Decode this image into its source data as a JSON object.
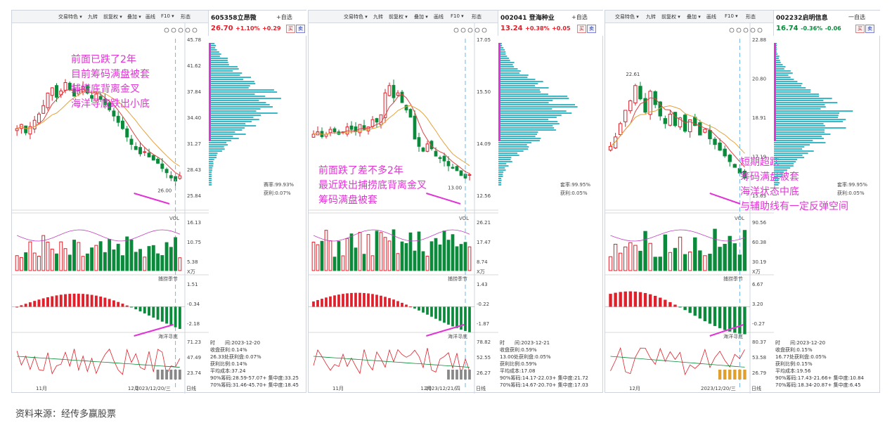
{
  "source": "资料来源：经传多赢股票",
  "toolbar": [
    "交易特色 ▾",
    "九转",
    "前复权 ▾",
    "叠加 ▾",
    "画线",
    "F10 ▾",
    "形态"
  ],
  "header_buttons": {
    "add": "+自选",
    "buy": "买",
    "sell": "卖",
    "minus": "一自选",
    "more": "»"
  },
  "footer_daily": "日线",
  "vol_label": "VOL",
  "x_unit": "X万",
  "ind1_label": "捕捞季节",
  "ind2_label": "海洋寻底",
  "chart_data": [
    {
      "type": "candlestick",
      "code": "605358",
      "name": "立昂微",
      "price": "26.70",
      "change_pct": "+1.10%",
      "change": "+0.29",
      "trend": "up",
      "y_ticks": [
        "45.78",
        "41.62",
        "37.84",
        "34.40",
        "31.27",
        "28.43",
        "25.84"
      ],
      "vol_ticks": [
        "16.13",
        "10.75",
        "5.38"
      ],
      "ind1_ticks": [
        "1.51",
        "-0.34",
        "-2.18"
      ],
      "ind2_ticks": [
        "71.23",
        "47.49",
        "23.74"
      ],
      "x_labels": [
        "11月",
        "12月"
      ],
      "date_label": "2023/12/20/三",
      "low_label": "26.00",
      "profit_rate": "赛率:99.93%",
      "profit_ratio": "获利:0.07%",
      "closes": [
        31.2,
        31.6,
        30.8,
        31.4,
        32.0,
        32.6,
        33.4,
        34.6,
        35.1,
        34.2,
        34.8,
        35.6,
        34.9,
        34.3,
        34.8,
        35.2,
        34.6,
        34.1,
        34.5,
        34.0,
        33.5,
        33.0,
        32.4,
        31.8,
        31.2,
        30.4,
        29.7,
        29.2,
        28.8,
        29.0,
        28.5,
        28.2,
        27.9,
        27.4,
        27.0,
        26.5,
        26.2,
        26.7
      ],
      "annotation": [
        "前面已跌了2年",
        "目前筹码满盘被套",
        "捕捞底背离金叉",
        "海洋寻底跌出小底"
      ],
      "info": [
        "时　　间:2023-12-20",
        "收盘获利:0.14%",
        "26.33处获利盘:0.07%",
        "获利比例:0.14%",
        "平均成本:37.24",
        "90%筹码:28.59-57.07+ 集中度:33.25",
        "70%筹码:31.46-45.70+ 集中度:18.45"
      ]
    },
    {
      "type": "candlestick",
      "code": "002041",
      "name": "登海种业",
      "price": "13.24",
      "change_pct": "+0.38%",
      "change": "+0.05",
      "trend": "up",
      "y_ticks": [
        "17.05",
        "15.50",
        "14.09",
        "12.56"
      ],
      "vol_ticks": [
        "26.21",
        "17.47",
        "8.74"
      ],
      "ind1_ticks": [
        "1.43",
        "-0.22",
        "-1.87"
      ],
      "ind2_ticks": [
        "78.82",
        "52.55",
        "26.27"
      ],
      "x_labels": [
        "11月",
        "12月"
      ],
      "date_label": "2023/12/21/四",
      "low_label": "13.00",
      "profit_rate": "套率:99.95%",
      "profit_ratio": "获利:0.05%",
      "closes": [
        14.9,
        15.0,
        14.8,
        14.9,
        15.1,
        15.0,
        14.9,
        15.0,
        15.2,
        15.1,
        15.0,
        15.3,
        15.1,
        15.2,
        15.5,
        15.4,
        15.7,
        16.6,
        16.9,
        16.4,
        16.6,
        16.2,
        15.9,
        15.6,
        14.7,
        14.4,
        14.2,
        14.5,
        14.3,
        14.0,
        13.9,
        13.8,
        13.6,
        13.5,
        13.4,
        13.2,
        13.1,
        13.24
      ],
      "annotation": [
        "前面跌了差不多2年",
        "最近跌出捕捞底背离金叉",
        "筹码满盘被套"
      ],
      "info": [
        "时　　间:2023-12-21",
        "收盘获利:0.59%",
        "13.00处获利盘:0.05%",
        "获利比例:0.59%",
        "平均成本:17.08",
        "90%筹码:14.17-22.03+ 集中度:21.72",
        "70%筹码:14.67-20.70+ 集中度:17.03"
      ]
    },
    {
      "type": "candlestick",
      "code": "002232",
      "name": "启明信息",
      "price": "16.74",
      "change_pct": "-0.36%",
      "change": "-0.06",
      "trend": "down",
      "y_ticks": [
        "22.88",
        "20.80",
        "18.91",
        "17.19",
        "15.63"
      ],
      "vol_ticks": [
        "90.56",
        "60.38",
        "30.19"
      ],
      "ind1_ticks": [
        "6.67",
        "3.20",
        "-0.27"
      ],
      "ind2_ticks": [
        "80.37",
        "53.58",
        "26.79"
      ],
      "x_labels": [
        "12月"
      ],
      "date_label": "2023/12/20/三",
      "high_label": "22.61",
      "profit_rate": "套率:99.95%",
      "profit_ratio": "获利:0.05%",
      "closes": [
        18.4,
        18.9,
        19.6,
        20.3,
        20.8,
        21.6,
        20.9,
        20.2,
        21.3,
        20.6,
        20.0,
        19.6,
        20.1,
        19.5,
        19.9,
        19.2,
        19.8,
        19.5,
        19.0,
        19.3,
        18.8,
        18.5,
        18.2,
        17.9,
        17.6,
        17.3,
        17.0,
        16.74
      ],
      "annotation": [
        "短期超跌",
        "筹码满盘被套",
        "海洋状态中底",
        "与辅助线有一定反弹空间"
      ],
      "info": [
        "时　　间:2023-12-20",
        "收盘获利:0.15%",
        "16.77处获利盘:0.05%",
        "获利比例:0.15%",
        "平均成本:19.56",
        "90%筹码:17.43-21.66+ 集中度:10.84",
        "70%筹码:18.34-20.87+ 集中度:6.45"
      ]
    }
  ]
}
